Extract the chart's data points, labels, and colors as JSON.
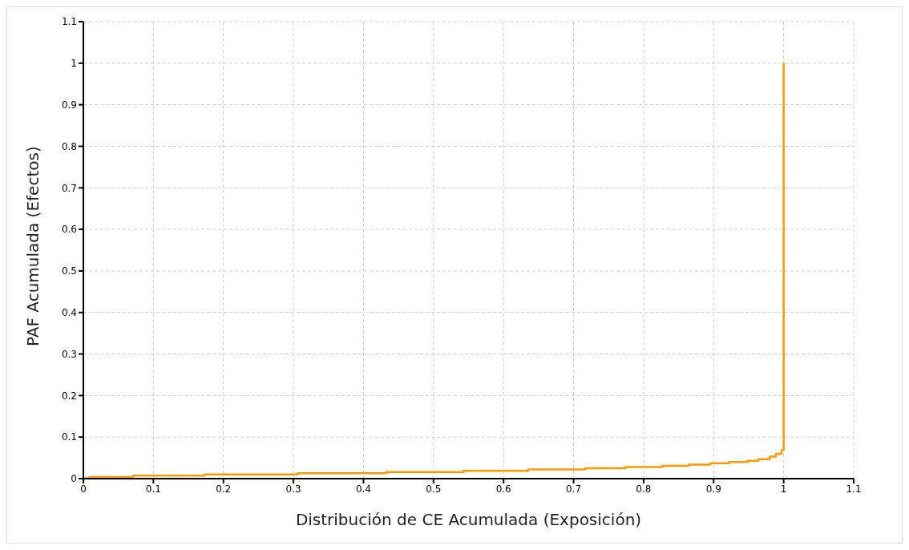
{
  "chart_data": {
    "type": "step",
    "xlabel": "Distribución de CE Acumulada (Exposición)",
    "ylabel": "PAF Acumulada (Efectos)",
    "x": [
      0,
      0.009,
      0.071,
      0.173,
      0.306,
      0.433,
      0.543,
      0.635,
      0.717,
      0.774,
      0.827,
      0.864,
      0.895,
      0.922,
      0.949,
      0.964,
      0.98,
      0.989,
      0.997,
      1.0,
      1.0
    ],
    "series": [
      {
        "color": "#ff9900",
        "values": [
          0.001,
          0.004,
          0.007,
          0.01,
          0.013,
          0.016,
          0.019,
          0.022,
          0.025,
          0.028,
          0.031,
          0.034,
          0.037,
          0.04,
          0.043,
          0.047,
          0.053,
          0.06,
          0.069,
          0.08,
          1.0
        ]
      }
    ],
    "xlim": [
      0,
      1.1
    ],
    "xticks": [
      0,
      0.1,
      0.2,
      0.3,
      0.4,
      0.5,
      0.6,
      0.7,
      0.8,
      0.9,
      1,
      1.1
    ],
    "ylim": [
      0,
      1.1
    ],
    "yticks": [
      0,
      0.1,
      0.2,
      0.3,
      0.4,
      0.5,
      0.6,
      0.7,
      0.8,
      0.9,
      1,
      1.1
    ],
    "grid": true,
    "legend": false,
    "marker": "none",
    "line_style": "solid"
  }
}
